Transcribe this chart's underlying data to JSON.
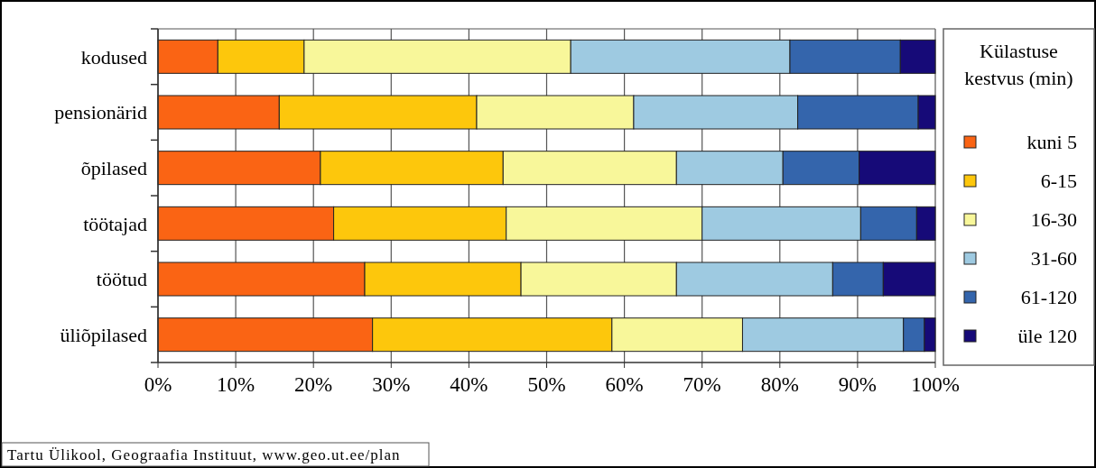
{
  "chart_data": {
    "type": "bar",
    "orientation": "horizontal",
    "stacked": true,
    "categories": [
      "kodused",
      "pensionärid",
      "õpilased",
      "töötajad",
      "töötud",
      "üliõpilased"
    ],
    "legend_title": "Külastuse kestvus (min)",
    "series": [
      {
        "name": "kuni 5",
        "color": "#fa6414",
        "values": [
          7.7,
          15.6,
          20.9,
          22.6,
          26.6,
          27.6
        ]
      },
      {
        "name": "6-15",
        "color": "#fdc70c",
        "values": [
          11.1,
          25.4,
          23.5,
          22.2,
          20.1,
          30.8
        ]
      },
      {
        "name": "16-30",
        "color": "#f8f79a",
        "values": [
          34.3,
          20.2,
          22.3,
          25.2,
          20.0,
          16.8
        ]
      },
      {
        "name": "31-60",
        "color": "#9ecae1",
        "values": [
          28.2,
          21.1,
          13.7,
          20.4,
          20.1,
          20.7
        ]
      },
      {
        "name": "61-120",
        "color": "#3465ac",
        "values": [
          14.2,
          15.5,
          9.8,
          7.2,
          6.5,
          2.7
        ]
      },
      {
        "name": "üle 120",
        "color": "#160a78",
        "values": [
          4.5,
          2.2,
          9.8,
          2.4,
          6.7,
          1.4
        ]
      }
    ],
    "xlim": [
      0,
      100
    ],
    "xticks": [
      {
        "value": 0,
        "label": "0%"
      },
      {
        "value": 10,
        "label": "10%"
      },
      {
        "value": 20,
        "label": "20%"
      },
      {
        "value": 30,
        "label": "30%"
      },
      {
        "value": 40,
        "label": "40%"
      },
      {
        "value": 50,
        "label": "50%"
      },
      {
        "value": 60,
        "label": "60%"
      },
      {
        "value": 70,
        "label": "70%"
      },
      {
        "value": 80,
        "label": "80%"
      },
      {
        "value": 90,
        "label": "90%"
      },
      {
        "value": 100,
        "label": "100%"
      }
    ],
    "grid": "x",
    "legend": "right",
    "annotations": [
      "Tartu Ülikool, Geograafia Instituut, www.geo.ut.ee/plan"
    ]
  }
}
